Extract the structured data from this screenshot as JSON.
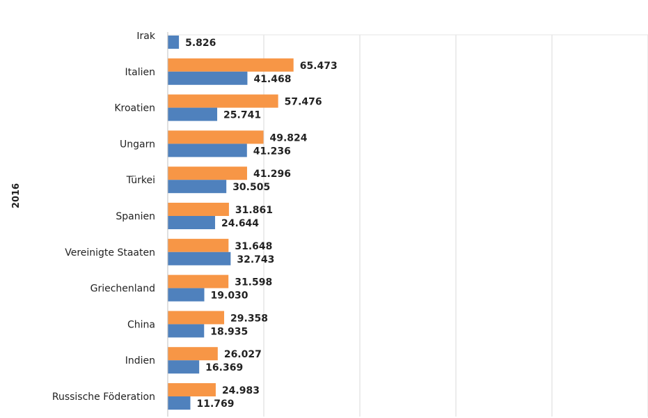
{
  "chart_data": {
    "type": "bar",
    "orientation": "horizontal",
    "group_label": "2016",
    "categories": [
      "Irak",
      "Italien",
      "Kroatien",
      "Ungarn",
      "Türkei",
      "Spanien",
      "Vereinigte Staaten",
      "Griechenland",
      "China",
      "Indien",
      "Russische Föderation"
    ],
    "series": [
      {
        "color": "#F79646",
        "values": [
          null,
          65473,
          57476,
          49824,
          41296,
          31861,
          31648,
          31598,
          29358,
          26027,
          24983
        ],
        "labels": [
          null,
          "65.473",
          "57.476",
          "49.824",
          "41.296",
          "31.861",
          "31.648",
          "31.598",
          "29.358",
          "26.027",
          "24.983"
        ]
      },
      {
        "color": "#4F81BD",
        "values": [
          5826,
          41468,
          25741,
          41236,
          30505,
          24644,
          32743,
          19030,
          18935,
          16369,
          11769
        ],
        "labels": [
          "5.826",
          "41.468",
          "25.741",
          "41.236",
          "30.505",
          "24.644",
          "32.743",
          "19.030",
          "18.935",
          "16.369",
          "11.769"
        ]
      }
    ],
    "xlim": [
      0,
      250000
    ],
    "grid": true,
    "legend": "none"
  }
}
